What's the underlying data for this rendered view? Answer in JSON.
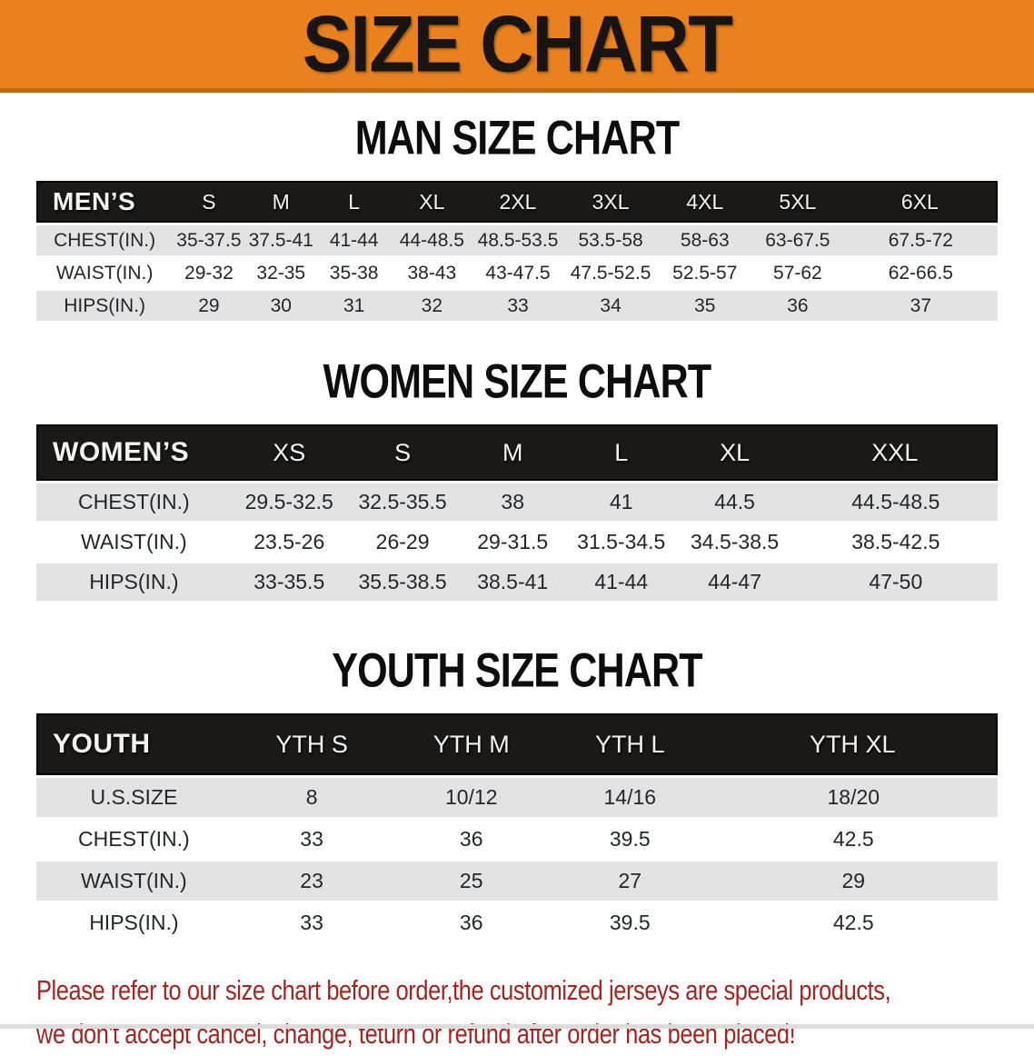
{
  "banner": {
    "title": "SIZE CHART",
    "bg_color": "#e8811e"
  },
  "sections": [
    {
      "id": "men",
      "title": "MAN SIZE CHART",
      "header_label": "MEN’S",
      "columns": [
        "S",
        "M",
        "L",
        "XL",
        "2XL",
        "3XL",
        "4XL",
        "5XL",
        "6XL"
      ],
      "rows": [
        {
          "label": "CHEST(IN.)",
          "values": [
            "35-37.5",
            "37.5-41",
            "41-44",
            "44-48.5",
            "48.5-53.5",
            "53.5-58",
            "58-63",
            "63-67.5",
            "67.5-72"
          ]
        },
        {
          "label": "WAIST(IN.)",
          "values": [
            "29-32",
            "32-35",
            "35-38",
            "38-43",
            "43-47.5",
            "47.5-52.5",
            "52.5-57",
            "57-62",
            "62-66.5"
          ]
        },
        {
          "label": "HIPS(IN.)",
          "values": [
            "29",
            "30",
            "31",
            "32",
            "33",
            "34",
            "35",
            "36",
            "37"
          ]
        }
      ]
    },
    {
      "id": "women",
      "title": "WOMEN SIZE CHART",
      "header_label": "WOMEN’S",
      "columns": [
        "XS",
        "S",
        "M",
        "L",
        "XL",
        "XXL"
      ],
      "rows": [
        {
          "label": "CHEST(IN.)",
          "values": [
            "29.5-32.5",
            "32.5-35.5",
            "38",
            "41",
            "44.5",
            "44.5-48.5"
          ]
        },
        {
          "label": "WAIST(IN.)",
          "values": [
            "23.5-26",
            "26-29",
            "29-31.5",
            "31.5-34.5",
            "34.5-38.5",
            "38.5-42.5"
          ]
        },
        {
          "label": "HIPS(IN.)",
          "values": [
            "33-35.5",
            "35.5-38.5",
            "38.5-41",
            "41-44",
            "44-47",
            "47-50"
          ]
        }
      ]
    },
    {
      "id": "youth",
      "title": "YOUTH SIZE CHART",
      "header_label": "YOUTH",
      "columns": [
        "YTH S",
        "YTH M",
        "YTH L",
        "YTH XL"
      ],
      "rows": [
        {
          "label": "U.S.SIZE",
          "values": [
            "8",
            "10/12",
            "14/16",
            "18/20"
          ]
        },
        {
          "label": "CHEST(IN.)",
          "values": [
            "33",
            "36",
            "39.5",
            "42.5"
          ]
        },
        {
          "label": "WAIST(IN.)",
          "values": [
            "23",
            "25",
            "27",
            "29"
          ]
        },
        {
          "label": "HIPS(IN.)",
          "values": [
            "33",
            "36",
            "39.5",
            "42.5"
          ]
        }
      ]
    }
  ],
  "footer": {
    "line1": "Please refer to our size chart before order,the customized jerseys are special products,",
    "line2": "we don't accept cancel, change, teturn or refund after order has been placed!",
    "text_color": "#a8231d"
  }
}
